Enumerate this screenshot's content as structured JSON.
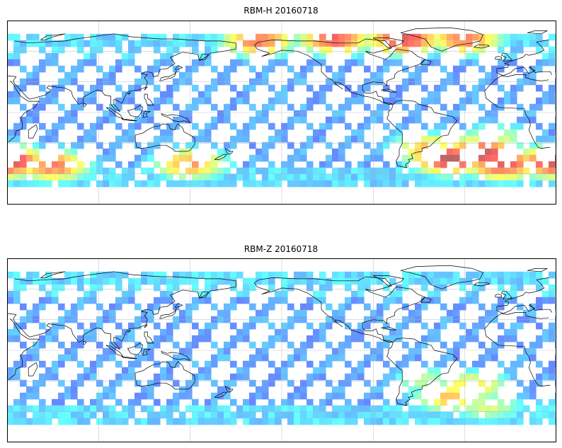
{
  "panels": [
    {
      "title": "RBM-H 20160718",
      "hot_zones": [
        {
          "lon": 30,
          "lat": -48,
          "level": 0.95
        },
        {
          "lon": 60,
          "lat": -52,
          "level": 0.8
        },
        {
          "lon": 150,
          "lat": -50,
          "level": 0.75
        },
        {
          "lon": -165,
          "lat": 70,
          "level": 0.8
        },
        {
          "lon": -115,
          "lat": 72,
          "level": 0.85
        },
        {
          "lon": -70,
          "lat": 72,
          "level": 0.9
        },
        {
          "lon": -30,
          "lat": 72,
          "level": 0.8
        },
        {
          "lon": -40,
          "lat": -45,
          "level": 0.95
        },
        {
          "lon": -20,
          "lat": -40,
          "level": 0.95
        },
        {
          "lon": -5,
          "lat": -50,
          "level": 0.9
        },
        {
          "lon": -55,
          "lat": -35,
          "level": 0.7
        },
        {
          "lon": -10,
          "lat": -25,
          "level": 0.55
        }
      ]
    },
    {
      "title": "RBM-Z 20160718",
      "hot_zones": [
        {
          "lon": -40,
          "lat": -45,
          "level": 0.7
        },
        {
          "lon": -25,
          "lat": -35,
          "level": 0.65
        },
        {
          "lon": -15,
          "lat": -55,
          "level": 0.55
        },
        {
          "lon": -55,
          "lat": -30,
          "level": 0.5
        },
        {
          "lon": 150,
          "lat": 65,
          "level": 0.35
        },
        {
          "lon": 20,
          "lat": -58,
          "level": 0.35
        }
      ]
    }
  ],
  "colormap": "jet",
  "alpha": 0.6,
  "projection": "plate-carree",
  "lon_range": [
    30,
    390
  ],
  "lat_range": [
    -90,
    90
  ],
  "gridlines": {
    "lon_every": 60,
    "lat_every": 30
  },
  "coastlines": true
}
